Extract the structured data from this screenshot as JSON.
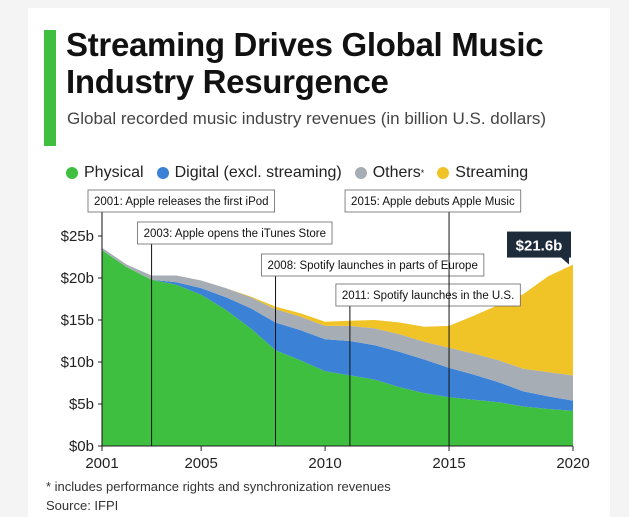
{
  "header": {
    "title": "Streaming Drives Global Music Industry Resurgence",
    "subtitle": "Global recorded music industry revenues (in billion U.S. dollars)"
  },
  "legend": [
    {
      "label": "Physical",
      "color": "#3fbf3f",
      "sup": ""
    },
    {
      "label": "Digital (excl. streaming)",
      "color": "#3b82d6",
      "sup": ""
    },
    {
      "label": "Others",
      "color": "#a7adb5",
      "sup": "*"
    },
    {
      "label": "Streaming",
      "color": "#f0c327",
      "sup": ""
    }
  ],
  "footer": {
    "footnote": "* includes performance rights and synchronization revenues",
    "source": "Source: IFPI"
  },
  "chart_data": {
    "type": "area",
    "stacked": true,
    "x": [
      2001,
      2002,
      2003,
      2004,
      2005,
      2006,
      2007,
      2008,
      2009,
      2010,
      2011,
      2012,
      2013,
      2014,
      2015,
      2016,
      2017,
      2018,
      2019,
      2020
    ],
    "series": [
      {
        "name": "Physical",
        "color": "#3fbf3f",
        "values": [
          23.3,
          21.3,
          19.8,
          19.2,
          18.0,
          16.2,
          14.0,
          11.4,
          10.2,
          8.9,
          8.4,
          7.9,
          7.0,
          6.3,
          5.8,
          5.5,
          5.2,
          4.7,
          4.4,
          4.2
        ]
      },
      {
        "name": "Digital (excl. streaming)",
        "color": "#3b82d6",
        "values": [
          0.0,
          0.0,
          0.0,
          0.3,
          0.8,
          1.5,
          2.4,
          3.3,
          3.6,
          3.8,
          4.1,
          4.1,
          4.2,
          4.0,
          3.5,
          3.0,
          2.4,
          1.8,
          1.5,
          1.2
        ]
      },
      {
        "name": "Others",
        "color": "#a7adb5",
        "values": [
          0.3,
          0.3,
          0.5,
          0.8,
          0.9,
          1.1,
          1.3,
          1.6,
          1.6,
          1.6,
          1.8,
          2.0,
          2.1,
          2.1,
          2.4,
          2.5,
          2.6,
          2.7,
          2.9,
          3.0
        ]
      },
      {
        "name": "Streaming",
        "color": "#f0c327",
        "values": [
          0.0,
          0.0,
          0.0,
          0.0,
          0.0,
          0.0,
          0.1,
          0.3,
          0.4,
          0.5,
          0.6,
          1.0,
          1.4,
          1.8,
          2.6,
          4.5,
          6.6,
          8.9,
          11.4,
          13.2
        ]
      }
    ],
    "y_ticks": [
      "$0b",
      "$5b",
      "$10b",
      "$15b",
      "$20b",
      "$25b"
    ],
    "y_tick_values": [
      0,
      5,
      10,
      15,
      20,
      25
    ],
    "x_ticks": [
      "2001",
      "2005",
      "2010",
      "2015",
      "2020"
    ],
    "x_tick_values": [
      2001,
      2005,
      2010,
      2015,
      2020
    ],
    "ylim": [
      0,
      25
    ],
    "xlim": [
      2001,
      2020
    ],
    "grid": false,
    "legend_position": "top",
    "annotations": [
      {
        "text": "2001: Apple releases the first iPod",
        "year": 2001,
        "row": 0
      },
      {
        "text": "2003: Apple opens the iTunes Store",
        "year": 2003,
        "row": 1
      },
      {
        "text": "2008: Spotify launches in parts of Europe",
        "year": 2008,
        "row": 2
      },
      {
        "text": "2011: Spotify launches in the U.S.",
        "year": 2011,
        "row": 3
      },
      {
        "text": "2015: Apple debuts Apple Music",
        "year": 2015,
        "row": 0
      }
    ],
    "end_label": {
      "text": "$21.6b",
      "value": 21.6
    }
  }
}
